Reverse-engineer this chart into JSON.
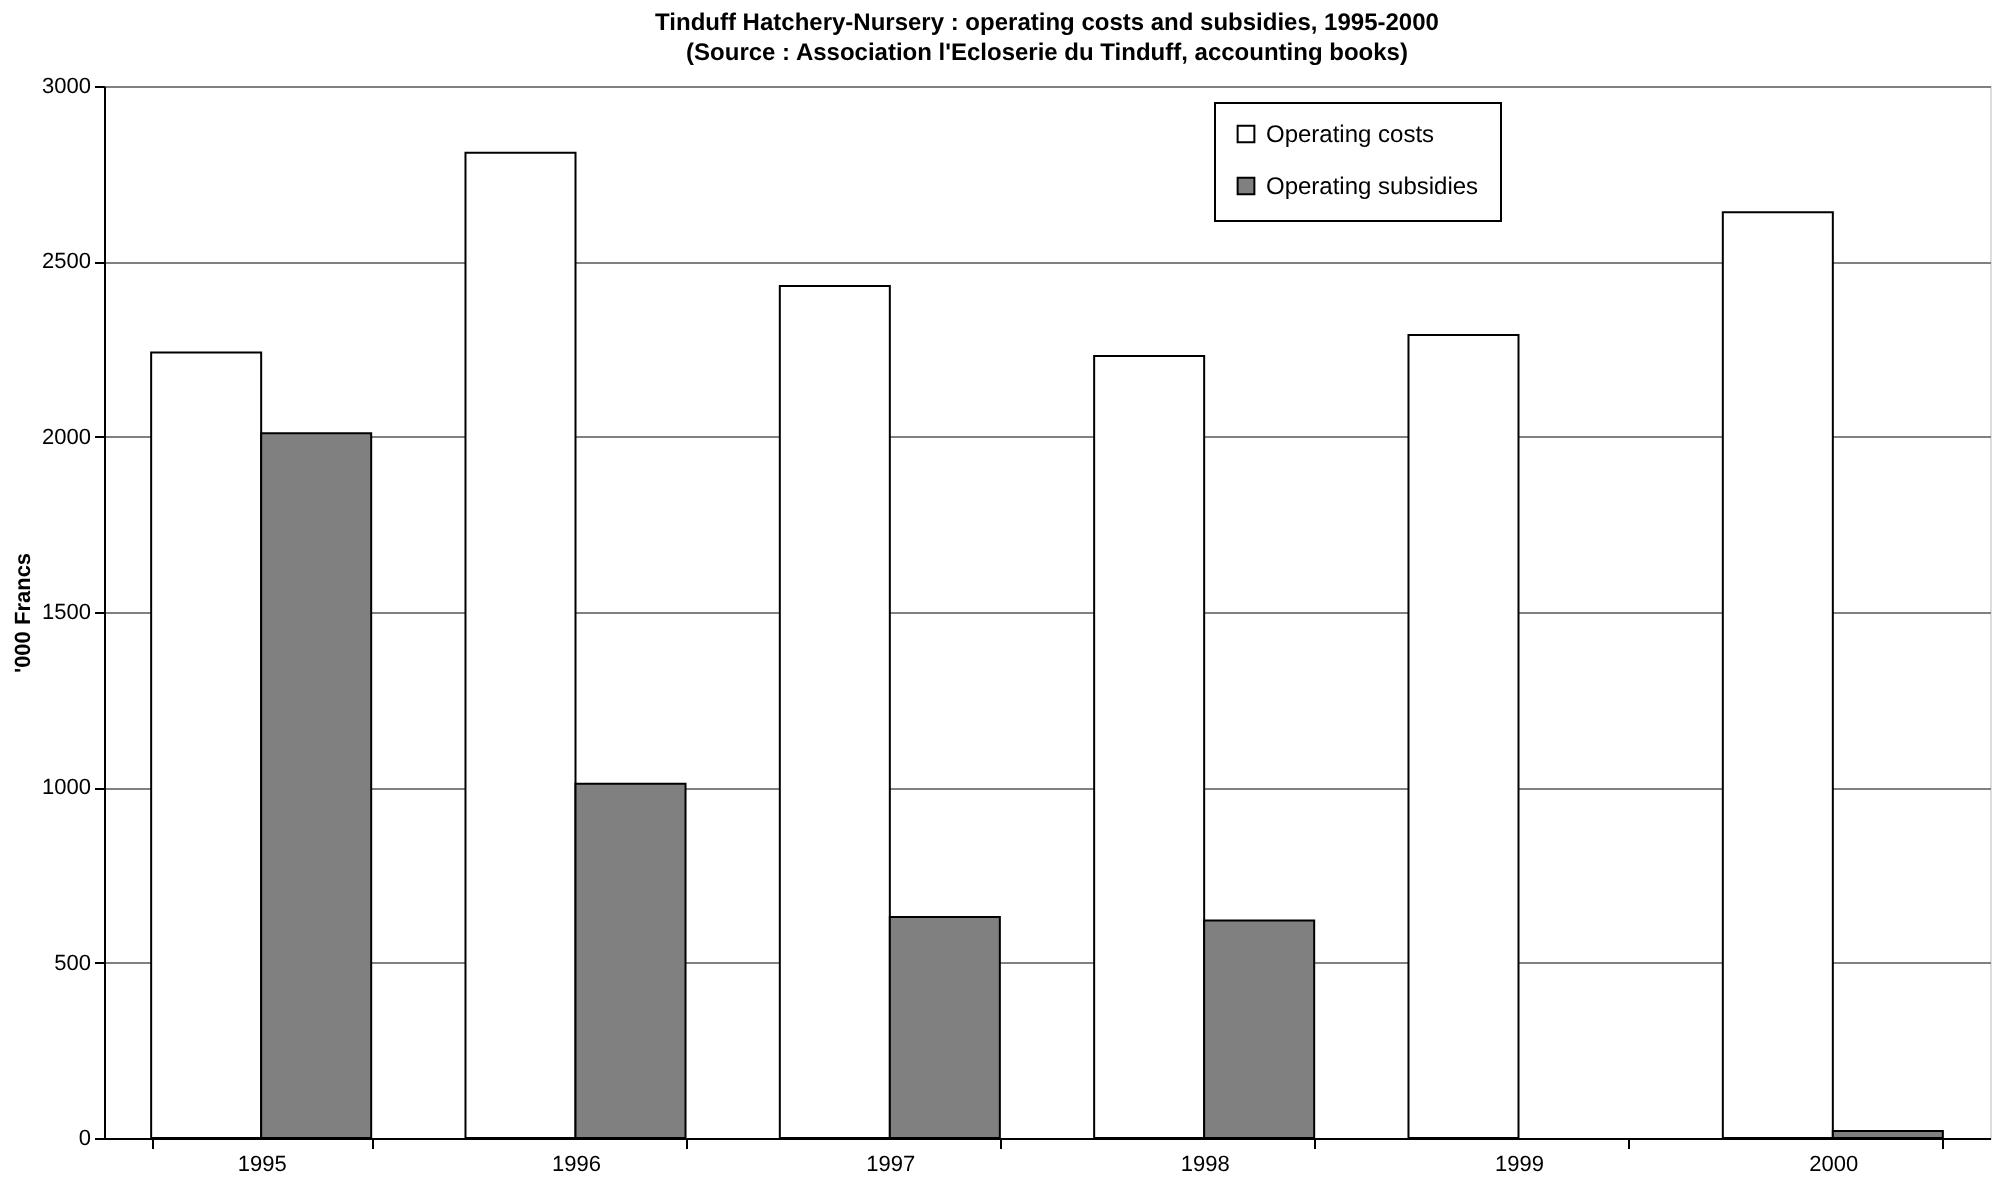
{
  "chart_data": {
    "type": "bar",
    "title": "Tinduff Hatchery-Nursery : operating costs and subsidies, 1995-2000",
    "subtitle": "(Source : Association l'Ecloserie du Tinduff, accounting books)",
    "ylabel": "'000 Francs",
    "categories": [
      "1995",
      "1996",
      "1997",
      "1998",
      "1999",
      "2000"
    ],
    "series": [
      {
        "name": "Operating costs",
        "color": "#ffffff",
        "values": [
          2240,
          2810,
          2430,
          2230,
          2290,
          2640
        ]
      },
      {
        "name": "Operating subsidies",
        "color": "#808080",
        "values": [
          2010,
          1010,
          630,
          620,
          null,
          20
        ]
      }
    ],
    "ylim": [
      0,
      3000
    ],
    "yticks": [
      0,
      500,
      1000,
      1500,
      2000,
      2500,
      3000
    ],
    "grid": "y",
    "legend": "top right"
  }
}
